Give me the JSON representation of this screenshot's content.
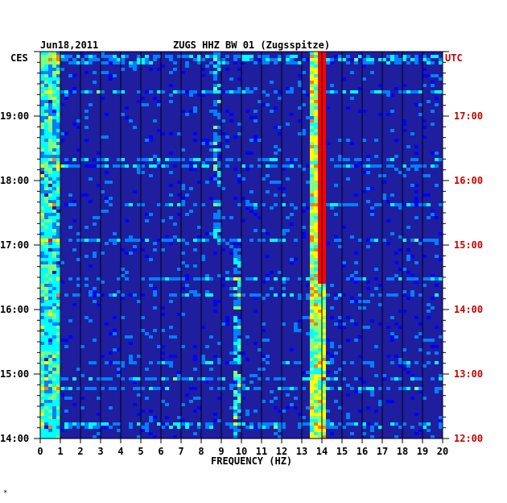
{
  "header": {
    "date": "Jun18,2011",
    "station": "ZUGS HHZ BW 01 (Zugsspitze)"
  },
  "chart_data": {
    "type": "heatmap",
    "title": "ZUGS HHZ BW 01 (Zugsspitze)",
    "date": "Jun18,2011",
    "xlabel": "FREQUENCY (HZ)",
    "xlim": [
      0,
      20
    ],
    "x_ticks": [
      "0",
      "1",
      "2",
      "3",
      "4",
      "5",
      "6",
      "7",
      "8",
      "9",
      "10",
      "11",
      "12",
      "13",
      "14",
      "15",
      "16",
      "17",
      "18",
      "19",
      "20"
    ],
    "left_axis": {
      "label": "CES",
      "ticks": [
        "19:00",
        "18:00",
        "17:00",
        "16:00",
        "15:00",
        "14:00"
      ],
      "range": [
        "14:00",
        "20:00"
      ]
    },
    "right_axis": {
      "label": "UTC",
      "ticks": [
        "17:00",
        "16:00",
        "15:00",
        "14:00",
        "13:00",
        "12:00"
      ],
      "range": [
        "12:00",
        "18:00"
      ]
    },
    "colormap": [
      "#0000a8",
      "#0000ff",
      "#0080ff",
      "#00ffff",
      "#80ff80",
      "#ffff00",
      "#ff8000",
      "#ff0000"
    ],
    "background_color": "#1e1e9e",
    "grid": true,
    "features": [
      {
        "freq_hz": 0.4,
        "note": "broadband low-frequency energy, strongest 14:00-19:00 CES"
      },
      {
        "freq_hz": 8.8,
        "time_range": [
          "17:00",
          "20:00"
        ],
        "note": "faint narrow line"
      },
      {
        "freq_hz": 9.8,
        "time_range": [
          "14:00",
          "17:00"
        ],
        "note": "intermittent line"
      },
      {
        "freq_hz": 13.8,
        "time_range": [
          "14:00",
          "20:00"
        ],
        "note": "persistent strong line"
      },
      {
        "freq_hz": 14.0,
        "time_range": [
          "16:30",
          "20:00"
        ],
        "note": "strongest red line"
      }
    ]
  },
  "footer_mark": "*"
}
